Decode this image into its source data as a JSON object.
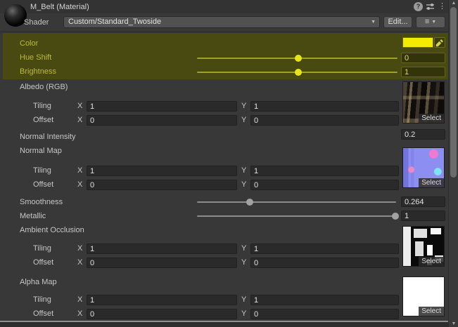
{
  "colors": {
    "panel_bg": "#383838",
    "highlight_bg": "#494a12",
    "swatch": "#f4eb00"
  },
  "icons": {
    "help_glyph": "?",
    "menu_glyph": "⋮",
    "arrow_down": "▼",
    "arrow_up": "▲",
    "list_glyph": "≡"
  },
  "labels": {
    "tiling": "Tiling",
    "offset": "Offset",
    "x": "X",
    "y": "Y",
    "select": "Select"
  },
  "header": {
    "title": "M_Belt (Material)"
  },
  "shader": {
    "label": "Shader",
    "value": "Custom/Standard_Twoside",
    "edit_button": "Edit..."
  },
  "tint": {
    "color_label": "Color",
    "hue_shift": {
      "label": "Hue Shift",
      "value": "0",
      "percent": 50
    },
    "brightness": {
      "label": "Brightness",
      "value": "1",
      "percent": 50
    }
  },
  "albedo": {
    "label": "Albedo (RGB)",
    "tiling_x": "1",
    "tiling_y": "1",
    "offset_x": "0",
    "offset_y": "0"
  },
  "normal_intensity": {
    "label": "Normal Intensity",
    "value": "0.2"
  },
  "normal_map": {
    "label": "Normal Map",
    "tiling_x": "1",
    "tiling_y": "1",
    "offset_x": "0",
    "offset_y": "0"
  },
  "smoothness": {
    "label": "Smoothness",
    "value": "0.264",
    "percent": 26.4
  },
  "metallic": {
    "label": "Metallic",
    "value": "1",
    "percent": 99
  },
  "ambient_occlusion": {
    "label": "Ambient Occlusion",
    "tiling_x": "1",
    "tiling_y": "1",
    "offset_x": "0",
    "offset_y": "0"
  },
  "alpha_map": {
    "label": "Alpha Map",
    "tiling_x": "1",
    "tiling_y": "1",
    "offset_x": "0",
    "offset_y": "0"
  }
}
